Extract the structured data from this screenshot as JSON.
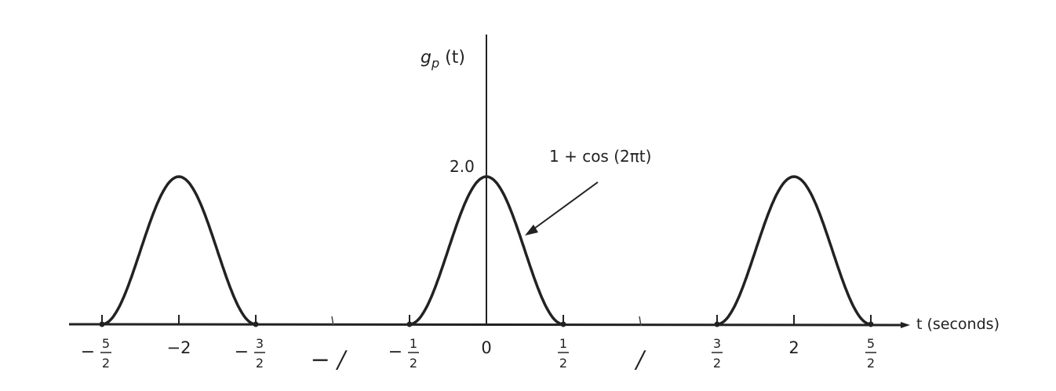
{
  "chart_data": {
    "type": "line",
    "ylabel_var": "g",
    "ylabel_sub": "p",
    "ylabel_arg": "(t)",
    "xlabel": "t  (seconds)",
    "y_tick_label": "2.0",
    "annotation": "1 + cos (2πt)",
    "function": "1 + cos(2πt) for |t - 2k| ≤ 1/2, else 0",
    "period": 2,
    "ylim": [
      0,
      2.0
    ],
    "xlim": [
      -2.85,
      2.85
    ],
    "pulses": [
      {
        "center": -2,
        "start": -2.5,
        "end": -1.5,
        "peak": 2.0
      },
      {
        "center": 0,
        "start": -0.5,
        "end": 0.5,
        "peak": 2.0
      },
      {
        "center": 2,
        "start": 1.5,
        "end": 2.5,
        "peak": 2.0
      }
    ],
    "x_ticks": [
      {
        "value": -2.5,
        "sign": "−",
        "num": "5",
        "den": "2"
      },
      {
        "value": -2,
        "text": "−2"
      },
      {
        "value": -1.5,
        "sign": "−",
        "num": "3",
        "den": "2"
      },
      {
        "value": -1,
        "text": "− /",
        "handwritten": true
      },
      {
        "value": -0.5,
        "sign": "−",
        "num": "1",
        "den": "2"
      },
      {
        "value": 0,
        "text": "0"
      },
      {
        "value": 0.5,
        "num": "1",
        "den": "2"
      },
      {
        "value": 1,
        "text": "/",
        "handwritten": true
      },
      {
        "value": 1.5,
        "num": "3",
        "den": "2"
      },
      {
        "value": 2,
        "text": "2"
      },
      {
        "value": 2.5,
        "num": "5",
        "den": "2"
      }
    ]
  }
}
